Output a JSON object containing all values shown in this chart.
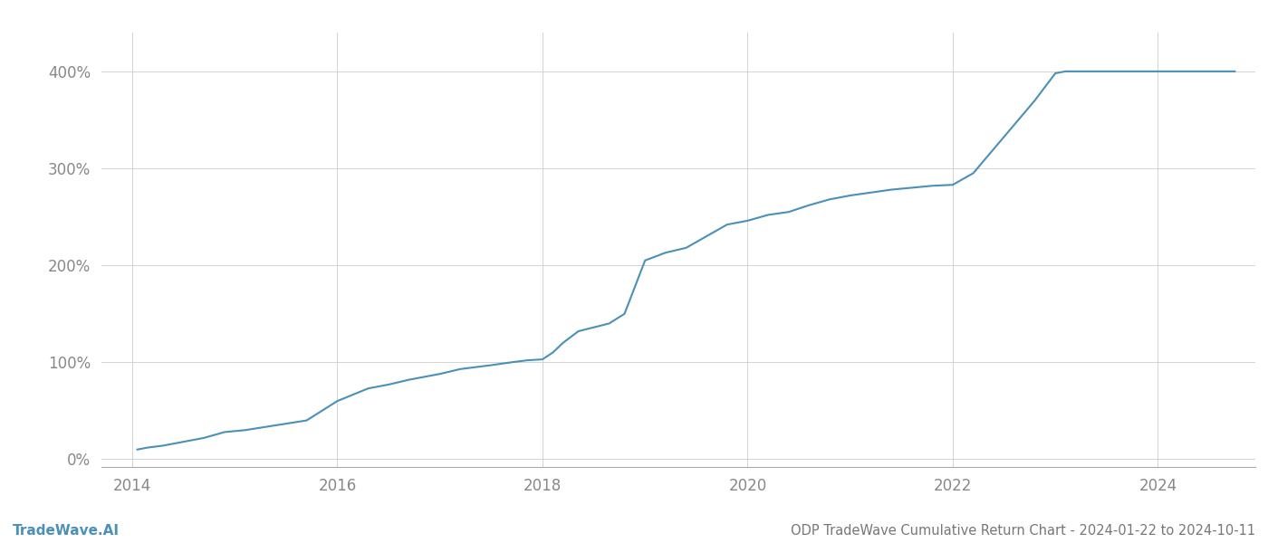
{
  "title": "ODP TradeWave Cumulative Return Chart - 2024-01-22 to 2024-10-11",
  "watermark": "TradeWave.AI",
  "line_color": "#4a90b8",
  "background_color": "#ffffff",
  "grid_color": "#cccccc",
  "x_years": [
    2014.05,
    2014.15,
    2014.3,
    2014.5,
    2014.7,
    2014.9,
    2015.1,
    2015.4,
    2015.7,
    2016.0,
    2016.3,
    2016.5,
    2016.7,
    2017.0,
    2017.2,
    2017.5,
    2017.7,
    2017.85,
    2018.0,
    2018.1,
    2018.2,
    2018.35,
    2018.5,
    2018.65,
    2018.8,
    2019.0,
    2019.2,
    2019.4,
    2019.6,
    2019.8,
    2020.0,
    2020.2,
    2020.4,
    2020.6,
    2020.8,
    2021.0,
    2021.2,
    2021.4,
    2021.6,
    2021.8,
    2022.0,
    2022.2,
    2022.4,
    2022.6,
    2022.8,
    2023.0,
    2023.1,
    2023.15,
    2023.3,
    2023.5,
    2023.8,
    2024.0,
    2024.2,
    2024.5,
    2024.75
  ],
  "y_values": [
    10,
    12,
    14,
    18,
    22,
    28,
    30,
    35,
    40,
    60,
    73,
    77,
    82,
    88,
    93,
    97,
    100,
    102,
    103,
    110,
    120,
    132,
    136,
    140,
    150,
    205,
    213,
    218,
    230,
    242,
    246,
    252,
    255,
    262,
    268,
    272,
    275,
    278,
    280,
    282,
    283,
    295,
    320,
    345,
    370,
    398,
    400,
    400,
    400,
    400,
    400,
    400,
    400,
    400,
    400
  ],
  "xlim": [
    2013.7,
    2024.95
  ],
  "ylim": [
    -8,
    440
  ],
  "yticks": [
    0,
    100,
    200,
    300,
    400
  ],
  "ytick_labels": [
    "0%",
    "100%",
    "200%",
    "300%",
    "400%"
  ],
  "xticks": [
    2014,
    2016,
    2018,
    2020,
    2022,
    2024
  ],
  "xtick_labels": [
    "2014",
    "2016",
    "2018",
    "2020",
    "2022",
    "2024"
  ],
  "title_fontsize": 10.5,
  "tick_fontsize": 12,
  "watermark_fontsize": 11,
  "line_width": 1.5
}
